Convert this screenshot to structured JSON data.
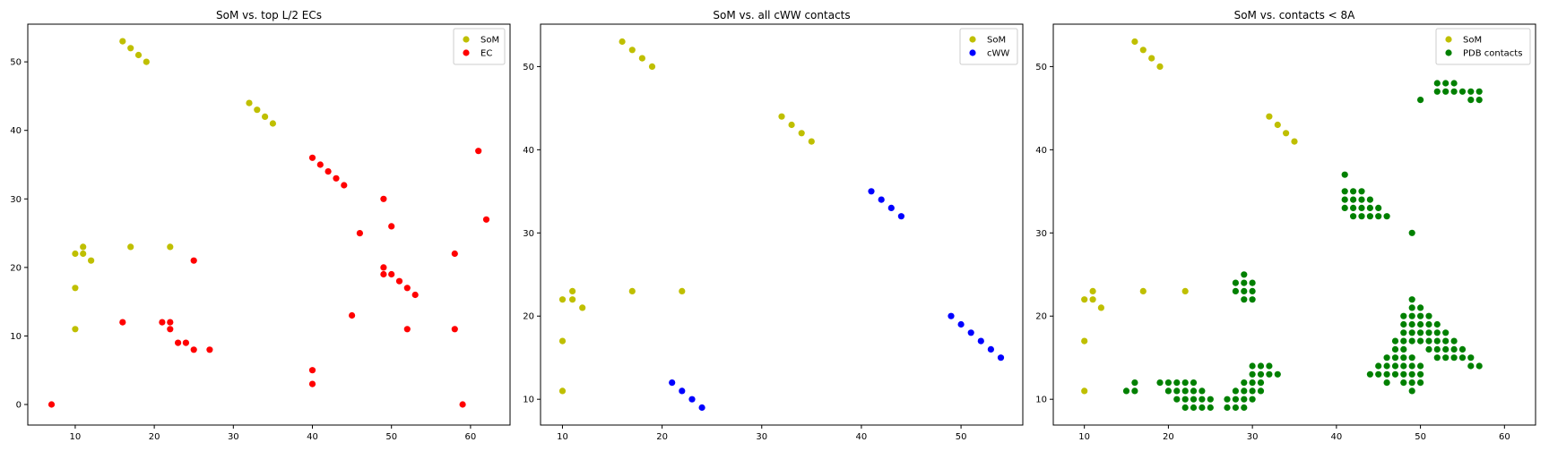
{
  "colors": {
    "som": "#bfbf00",
    "ec": "#ff0000",
    "cww": "#0000ff",
    "pdb": "#008000"
  },
  "chart_data": [
    {
      "type": "scatter",
      "title": "SoM vs. top L/2 ECs",
      "xlabel": "",
      "ylabel": "",
      "xlim": [
        4,
        65
      ],
      "ylim": [
        -3,
        55.5
      ],
      "xticks": [
        10,
        20,
        30,
        40,
        50,
        60
      ],
      "yticks": [
        0,
        10,
        20,
        30,
        40,
        50
      ],
      "grid": false,
      "legend": "top-right",
      "series": [
        {
          "name": "SoM",
          "color_key": "som",
          "points": [
            [
              16,
              53
            ],
            [
              17,
              52
            ],
            [
              18,
              51
            ],
            [
              19,
              50
            ],
            [
              32,
              44
            ],
            [
              33,
              43
            ],
            [
              34,
              42
            ],
            [
              35,
              41
            ],
            [
              10,
              22
            ],
            [
              11,
              23
            ],
            [
              11,
              22
            ],
            [
              12,
              21
            ],
            [
              17,
              23
            ],
            [
              22,
              23
            ],
            [
              10,
              17
            ],
            [
              10,
              11
            ]
          ]
        },
        {
          "name": "EC",
          "color_key": "ec",
          "points": [
            [
              7,
              0
            ],
            [
              16,
              12
            ],
            [
              21,
              12
            ],
            [
              22,
              12
            ],
            [
              22,
              11
            ],
            [
              23,
              9
            ],
            [
              24,
              9
            ],
            [
              25,
              8
            ],
            [
              27,
              8
            ],
            [
              25,
              21
            ],
            [
              40,
              36
            ],
            [
              41,
              35
            ],
            [
              42,
              34
            ],
            [
              43,
              33
            ],
            [
              44,
              32
            ],
            [
              49,
              30
            ],
            [
              50,
              26
            ],
            [
              46,
              25
            ],
            [
              49,
              20
            ],
            [
              49,
              19
            ],
            [
              50,
              19
            ],
            [
              51,
              18
            ],
            [
              52,
              17
            ],
            [
              53,
              16
            ],
            [
              45,
              13
            ],
            [
              52,
              11
            ],
            [
              40,
              5
            ],
            [
              40,
              3
            ],
            [
              58,
              22
            ],
            [
              58,
              11
            ],
            [
              59,
              0
            ],
            [
              61,
              37
            ],
            [
              62,
              27
            ]
          ]
        }
      ]
    },
    {
      "type": "scatter",
      "title": "SoM vs. all cWW contacts",
      "xlabel": "",
      "ylabel": "",
      "xlim": [
        7.8,
        56.2
      ],
      "ylim": [
        6.9,
        55.1
      ],
      "xticks": [
        10,
        20,
        30,
        40,
        50
      ],
      "yticks": [
        10,
        20,
        30,
        40,
        50
      ],
      "grid": false,
      "legend": "top-right",
      "series": [
        {
          "name": "SoM",
          "color_key": "som",
          "points": [
            [
              16,
              53
            ],
            [
              17,
              52
            ],
            [
              18,
              51
            ],
            [
              19,
              50
            ],
            [
              32,
              44
            ],
            [
              33,
              43
            ],
            [
              34,
              42
            ],
            [
              35,
              41
            ],
            [
              10,
              22
            ],
            [
              11,
              23
            ],
            [
              11,
              22
            ],
            [
              12,
              21
            ],
            [
              17,
              23
            ],
            [
              22,
              23
            ],
            [
              10,
              17
            ],
            [
              10,
              11
            ]
          ]
        },
        {
          "name": "cWW",
          "color_key": "cww",
          "points": [
            [
              41,
              35
            ],
            [
              42,
              34
            ],
            [
              43,
              33
            ],
            [
              44,
              32
            ],
            [
              49,
              20
            ],
            [
              50,
              19
            ],
            [
              51,
              18
            ],
            [
              52,
              17
            ],
            [
              53,
              16
            ],
            [
              54,
              15
            ],
            [
              21,
              12
            ],
            [
              22,
              11
            ],
            [
              23,
              10
            ],
            [
              24,
              9
            ]
          ]
        }
      ]
    },
    {
      "type": "scatter",
      "title": "SoM vs. contacts < 8A",
      "xlabel": "",
      "ylabel": "",
      "xlim": [
        6.3,
        63.7
      ],
      "ylim": [
        6.9,
        55.1
      ],
      "xticks": [
        10,
        20,
        30,
        40,
        50,
        60
      ],
      "yticks": [
        10,
        20,
        30,
        40,
        50
      ],
      "grid": false,
      "legend": "top-right",
      "series": [
        {
          "name": "SoM",
          "color_key": "som",
          "points": [
            [
              16,
              53
            ],
            [
              17,
              52
            ],
            [
              18,
              51
            ],
            [
              19,
              50
            ],
            [
              32,
              44
            ],
            [
              33,
              43
            ],
            [
              34,
              42
            ],
            [
              35,
              41
            ],
            [
              10,
              22
            ],
            [
              11,
              23
            ],
            [
              11,
              22
            ],
            [
              12,
              21
            ],
            [
              17,
              23
            ],
            [
              22,
              23
            ],
            [
              10,
              17
            ],
            [
              10,
              11
            ]
          ]
        },
        {
          "name": "PDB contacts",
          "color_key": "pdb",
          "points": [
            [
              52,
              48
            ],
            [
              53,
              48
            ],
            [
              54,
              48
            ],
            [
              52,
              47
            ],
            [
              53,
              47
            ],
            [
              54,
              47
            ],
            [
              55,
              47
            ],
            [
              56,
              47
            ],
            [
              57,
              47
            ],
            [
              56,
              46
            ],
            [
              57,
              46
            ],
            [
              50,
              46
            ],
            [
              41,
              37
            ],
            [
              41,
              35
            ],
            [
              42,
              35
            ],
            [
              43,
              35
            ],
            [
              41,
              34
            ],
            [
              42,
              34
            ],
            [
              43,
              34
            ],
            [
              44,
              34
            ],
            [
              41,
              33
            ],
            [
              42,
              33
            ],
            [
              43,
              33
            ],
            [
              44,
              33
            ],
            [
              45,
              33
            ],
            [
              42,
              32
            ],
            [
              43,
              32
            ],
            [
              44,
              32
            ],
            [
              45,
              32
            ],
            [
              46,
              32
            ],
            [
              49,
              30
            ],
            [
              29,
              25
            ],
            [
              28,
              24
            ],
            [
              29,
              24
            ],
            [
              30,
              24
            ],
            [
              28,
              23
            ],
            [
              29,
              23
            ],
            [
              30,
              23
            ],
            [
              29,
              22
            ],
            [
              30,
              22
            ],
            [
              49,
              22
            ],
            [
              49,
              21
            ],
            [
              50,
              21
            ],
            [
              48,
              20
            ],
            [
              49,
              20
            ],
            [
              50,
              20
            ],
            [
              51,
              20
            ],
            [
              48,
              19
            ],
            [
              49,
              19
            ],
            [
              50,
              19
            ],
            [
              51,
              19
            ],
            [
              52,
              19
            ],
            [
              48,
              18
            ],
            [
              49,
              18
            ],
            [
              50,
              18
            ],
            [
              51,
              18
            ],
            [
              52,
              18
            ],
            [
              53,
              18
            ],
            [
              47,
              17
            ],
            [
              48,
              17
            ],
            [
              49,
              17
            ],
            [
              50,
              17
            ],
            [
              51,
              17
            ],
            [
              52,
              17
            ],
            [
              53,
              17
            ],
            [
              54,
              17
            ],
            [
              47,
              16
            ],
            [
              48,
              16
            ],
            [
              51,
              16
            ],
            [
              52,
              16
            ],
            [
              53,
              16
            ],
            [
              54,
              16
            ],
            [
              55,
              16
            ],
            [
              46,
              15
            ],
            [
              47,
              15
            ],
            [
              48,
              15
            ],
            [
              49,
              15
            ],
            [
              52,
              15
            ],
            [
              53,
              15
            ],
            [
              54,
              15
            ],
            [
              55,
              15
            ],
            [
              56,
              15
            ],
            [
              45,
              14
            ],
            [
              46,
              14
            ],
            [
              47,
              14
            ],
            [
              48,
              14
            ],
            [
              49,
              14
            ],
            [
              50,
              14
            ],
            [
              56,
              14
            ],
            [
              57,
              14
            ],
            [
              44,
              13
            ],
            [
              45,
              13
            ],
            [
              46,
              13
            ],
            [
              47,
              13
            ],
            [
              48,
              13
            ],
            [
              49,
              13
            ],
            [
              50,
              13
            ],
            [
              46,
              12
            ],
            [
              48,
              12
            ],
            [
              49,
              12
            ],
            [
              50,
              12
            ],
            [
              49,
              11
            ],
            [
              30,
              14
            ],
            [
              31,
              14
            ],
            [
              32,
              14
            ],
            [
              30,
              13
            ],
            [
              31,
              13
            ],
            [
              32,
              13
            ],
            [
              33,
              13
            ],
            [
              29,
              12
            ],
            [
              30,
              12
            ],
            [
              31,
              12
            ],
            [
              28,
              11
            ],
            [
              29,
              11
            ],
            [
              30,
              11
            ],
            [
              31,
              11
            ],
            [
              28,
              10
            ],
            [
              29,
              10
            ],
            [
              30,
              10
            ],
            [
              27,
              10
            ],
            [
              27,
              9
            ],
            [
              28,
              9
            ],
            [
              29,
              9
            ],
            [
              16,
              12
            ],
            [
              19,
              12
            ],
            [
              20,
              12
            ],
            [
              21,
              12
            ],
            [
              22,
              12
            ],
            [
              23,
              12
            ],
            [
              15,
              11
            ],
            [
              16,
              11
            ],
            [
              20,
              11
            ],
            [
              21,
              11
            ],
            [
              22,
              11
            ],
            [
              23,
              11
            ],
            [
              24,
              11
            ],
            [
              21,
              10
            ],
            [
              22,
              10
            ],
            [
              23,
              10
            ],
            [
              24,
              10
            ],
            [
              25,
              10
            ],
            [
              22,
              9
            ],
            [
              23,
              9
            ],
            [
              24,
              9
            ],
            [
              25,
              9
            ]
          ]
        }
      ]
    }
  ]
}
